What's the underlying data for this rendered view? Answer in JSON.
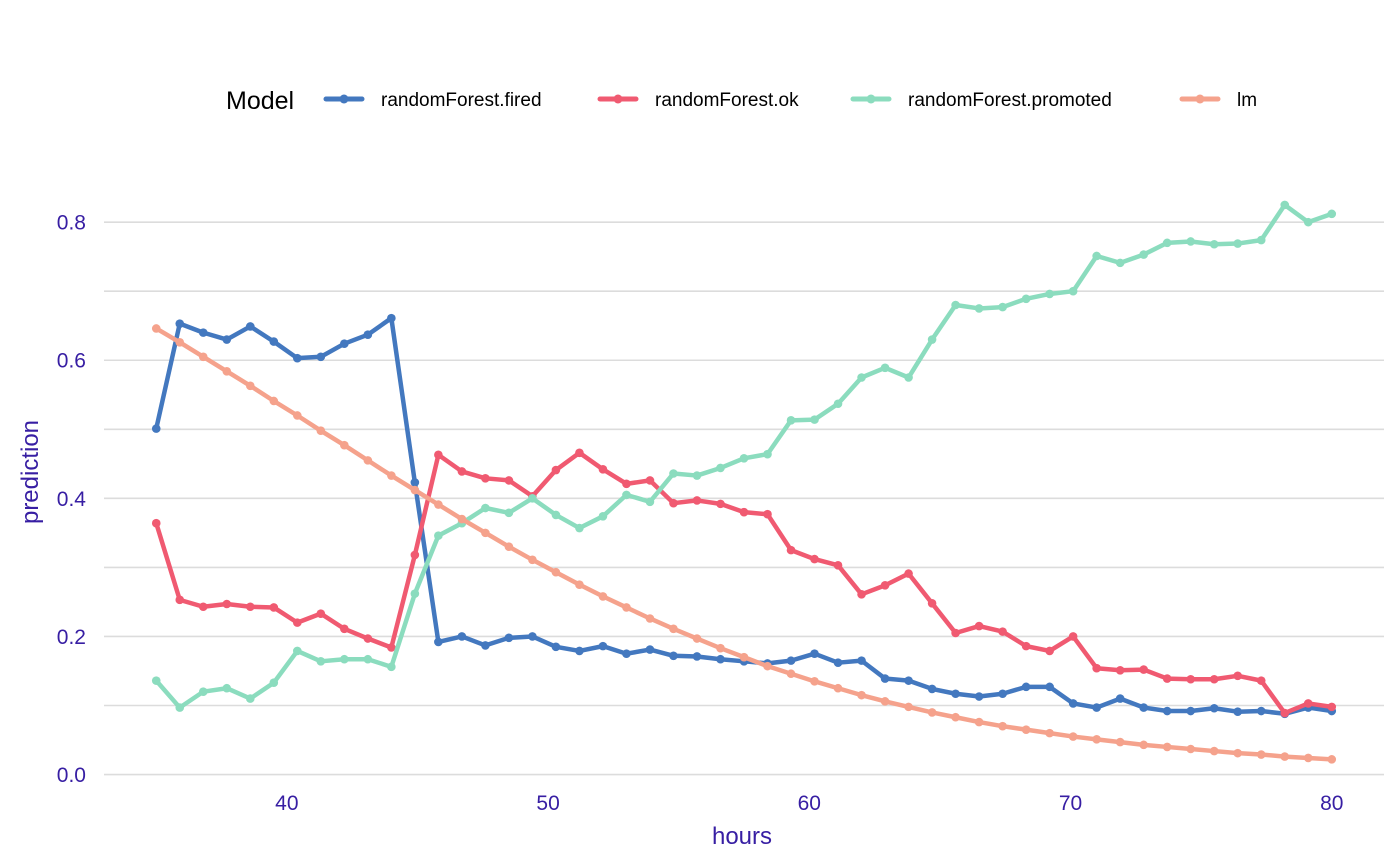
{
  "chart_data": {
    "type": "line",
    "title": "",
    "xlabel": "hours",
    "ylabel": "prediction",
    "xlim": [
      33,
      82
    ],
    "ylim": [
      -0.005,
      0.89
    ],
    "xticks": [
      40,
      50,
      60,
      70,
      80
    ],
    "xtick_labels": [
      "40",
      "50",
      "60",
      "70",
      "80"
    ],
    "yticks": [
      0.0,
      0.2,
      0.4,
      0.6,
      0.8
    ],
    "ytick_labels": [
      "0.0",
      "0.2",
      "0.4",
      "0.6",
      "0.8"
    ],
    "ygrid_minor": [
      0.1,
      0.3,
      0.5,
      0.7
    ],
    "grid": "horizontal",
    "legend": {
      "title": "Model",
      "position": "top"
    },
    "x": [
      35.0,
      35.9,
      36.8,
      37.7,
      38.6,
      39.5,
      40.4,
      41.3,
      42.2,
      43.1,
      44.0,
      44.9,
      45.8,
      46.7,
      47.6,
      48.5,
      49.4,
      50.3,
      51.2,
      52.1,
      53.0,
      53.9,
      54.8,
      55.7,
      56.6,
      57.5,
      58.4,
      59.3,
      60.2,
      61.1,
      62.0,
      62.9,
      63.8,
      64.7,
      65.6,
      66.5,
      67.4,
      68.3,
      69.2,
      70.1,
      71.0,
      71.9,
      72.8,
      73.7,
      74.6,
      75.5,
      76.4,
      77.3,
      78.2,
      79.1,
      80.0
    ],
    "series": [
      {
        "name": "randomForest.fired",
        "color": "#4378bf",
        "values": [
          0.501,
          0.653,
          0.64,
          0.63,
          0.649,
          0.627,
          0.603,
          0.605,
          0.624,
          0.637,
          0.661,
          0.423,
          0.192,
          0.2,
          0.187,
          0.198,
          0.2,
          0.185,
          0.179,
          0.186,
          0.175,
          0.181,
          0.172,
          0.171,
          0.167,
          0.164,
          0.161,
          0.165,
          0.175,
          0.162,
          0.165,
          0.139,
          0.136,
          0.124,
          0.117,
          0.113,
          0.117,
          0.127,
          0.127,
          0.103,
          0.097,
          0.11,
          0.097,
          0.092,
          0.092,
          0.096,
          0.091,
          0.092,
          0.088,
          0.097,
          0.092
        ]
      },
      {
        "name": "randomForest.ok",
        "color": "#f05a71",
        "values": [
          0.364,
          0.253,
          0.243,
          0.247,
          0.243,
          0.242,
          0.22,
          0.233,
          0.211,
          0.197,
          0.184,
          0.318,
          0.463,
          0.439,
          0.429,
          0.426,
          0.403,
          0.441,
          0.466,
          0.442,
          0.421,
          0.426,
          0.393,
          0.397,
          0.392,
          0.38,
          0.377,
          0.325,
          0.312,
          0.303,
          0.261,
          0.274,
          0.291,
          0.248,
          0.205,
          0.215,
          0.207,
          0.186,
          0.179,
          0.2,
          0.154,
          0.151,
          0.152,
          0.139,
          0.138,
          0.138,
          0.143,
          0.136,
          0.089,
          0.103,
          0.098
        ]
      },
      {
        "name": "randomForest.promoted",
        "color": "#8bdcbe",
        "values": [
          0.136,
          0.097,
          0.12,
          0.125,
          0.11,
          0.133,
          0.179,
          0.164,
          0.167,
          0.167,
          0.156,
          0.262,
          0.346,
          0.364,
          0.386,
          0.379,
          0.4,
          0.376,
          0.357,
          0.374,
          0.405,
          0.395,
          0.436,
          0.433,
          0.444,
          0.458,
          0.464,
          0.513,
          0.514,
          0.537,
          0.575,
          0.589,
          0.575,
          0.63,
          0.68,
          0.675,
          0.677,
          0.689,
          0.696,
          0.7,
          0.751,
          0.741,
          0.753,
          0.77,
          0.772,
          0.768,
          0.769,
          0.774,
          0.825,
          0.8,
          0.812
        ]
      },
      {
        "name": "lm",
        "color": "#f5a28c",
        "values": [
          0.646,
          0.626,
          0.605,
          0.584,
          0.563,
          0.541,
          0.52,
          0.498,
          0.477,
          0.455,
          0.433,
          0.412,
          0.391,
          0.37,
          0.35,
          0.33,
          0.311,
          0.293,
          0.275,
          0.258,
          0.242,
          0.226,
          0.211,
          0.197,
          0.183,
          0.17,
          0.157,
          0.146,
          0.135,
          0.125,
          0.115,
          0.106,
          0.098,
          0.09,
          0.083,
          0.076,
          0.07,
          0.065,
          0.06,
          0.055,
          0.051,
          0.047,
          0.043,
          0.04,
          0.037,
          0.034,
          0.031,
          0.029,
          0.026,
          0.024,
          0.022
        ]
      }
    ]
  }
}
